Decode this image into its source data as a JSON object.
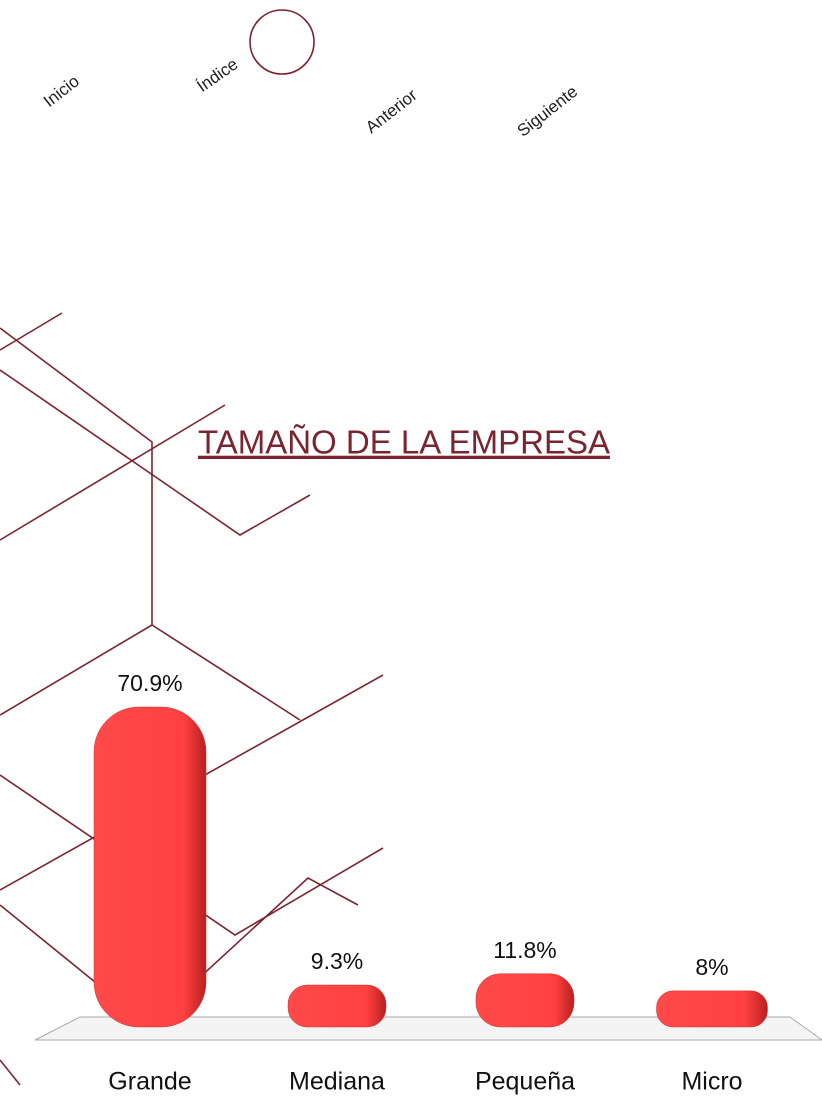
{
  "nav": [
    "Inicio",
    "Índice",
    "Anterior",
    "Siguiente"
  ],
  "chart_data": {
    "type": "bar",
    "title": "TAMAÑO DE LA EMPRESA",
    "categories": [
      "Grande",
      "Mediana",
      "Pequeña",
      "Micro"
    ],
    "values": [
      70.9,
      9.3,
      11.8,
      8
    ],
    "value_labels": [
      "70.9%",
      "9.3%",
      "11.8%",
      "8%"
    ],
    "color": "#ff4040"
  }
}
